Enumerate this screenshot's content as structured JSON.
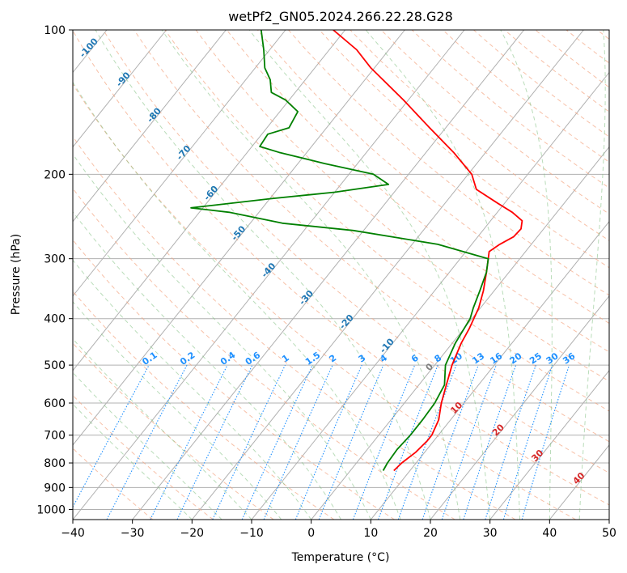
{
  "chart_data": {
    "type": "line",
    "subtype": "skew-T log-p diagram",
    "title": "wetPf2_GN05.2024.266.22.28.G28",
    "xlabel": "Temperature (°C)",
    "ylabel": "Pressure (hPa)",
    "xlim": [
      -40,
      50
    ],
    "ylim": [
      1050,
      100
    ],
    "yscale": "log",
    "x_ticks": [
      -40,
      -30,
      -20,
      -10,
      0,
      10,
      20,
      30,
      40,
      50
    ],
    "y_ticks": [
      100,
      200,
      300,
      400,
      500,
      600,
      700,
      800,
      900,
      1000
    ],
    "grid": true,
    "series": [
      {
        "role": "temperature",
        "color": "#ff0000",
        "points": [
          [
            7.3,
            830
          ],
          [
            7.6,
            800
          ],
          [
            8.5,
            760
          ],
          [
            8.9,
            720
          ],
          [
            8.9,
            700
          ],
          [
            8.0,
            650
          ],
          [
            6.2,
            600
          ],
          [
            4.6,
            550
          ],
          [
            2.9,
            500
          ],
          [
            1.5,
            450
          ],
          [
            0.9,
            420
          ],
          [
            -0.3,
            380
          ],
          [
            -1.8,
            350
          ],
          [
            -3.8,
            320
          ],
          [
            -5.3,
            300
          ],
          [
            -6.1,
            290
          ],
          [
            -5.3,
            280
          ],
          [
            -4.0,
            270
          ],
          [
            -3.8,
            260
          ],
          [
            -4.7,
            250
          ],
          [
            -7.5,
            240
          ],
          [
            -11.1,
            230
          ],
          [
            -16.6,
            215
          ],
          [
            -19.4,
            200
          ],
          [
            -25.4,
            180
          ],
          [
            -32.7,
            160
          ],
          [
            -40.8,
            140
          ],
          [
            -50.6,
            120
          ],
          [
            -55.4,
            110
          ],
          [
            -62.0,
            100
          ]
        ]
      },
      {
        "role": "dewpoint",
        "color": "#008000",
        "points": [
          [
            5.5,
            830
          ],
          [
            5.2,
            800
          ],
          [
            5.0,
            750
          ],
          [
            5.3,
            700
          ],
          [
            5.3,
            650
          ],
          [
            5.1,
            600
          ],
          [
            4.3,
            550
          ],
          [
            1.8,
            500
          ],
          [
            0.5,
            450
          ],
          [
            -0.3,
            400
          ],
          [
            -1.2,
            380
          ],
          [
            -2.4,
            350
          ],
          [
            -3.8,
            320
          ],
          [
            -5.3,
            300
          ],
          [
            -15.7,
            280
          ],
          [
            -31.7,
            262
          ],
          [
            -44.6,
            253
          ],
          [
            -55.0,
            240
          ],
          [
            -62.0,
            235
          ],
          [
            -50.0,
            225
          ],
          [
            -40.0,
            218
          ],
          [
            -32.0,
            210
          ],
          [
            -35.9,
            200
          ],
          [
            -45.5,
            190
          ],
          [
            -54.7,
            180
          ],
          [
            -58.7,
            175
          ],
          [
            -59.0,
            165
          ],
          [
            -56.3,
            160
          ],
          [
            -57.0,
            148
          ],
          [
            -60.6,
            140
          ],
          [
            -64.0,
            135
          ],
          [
            -65.9,
            127
          ],
          [
            -68.4,
            120
          ],
          [
            -71.0,
            110
          ],
          [
            -74.1,
            100
          ]
        ]
      }
    ],
    "mixing_ratio_labels": [
      "0.1",
      "0.2",
      "0.4",
      "0.6",
      "1",
      "1.5",
      "2",
      "3",
      "4",
      "6",
      "8",
      "10",
      "13",
      "16",
      "20",
      "25",
      "30",
      "36"
    ],
    "dry_adiabat_labels": [
      "-100",
      "-90",
      "-80",
      "-70",
      "-60",
      "-50",
      "-40",
      "-30",
      "-20",
      "-10"
    ],
    "moist_adiabat_labels": [
      "0",
      "10",
      "20",
      "30",
      "40"
    ]
  }
}
